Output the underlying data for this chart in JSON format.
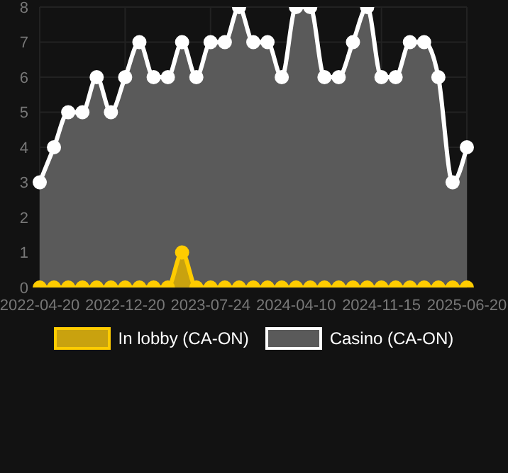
{
  "chart_data": {
    "type": "area",
    "categories": [
      "2022-04-20",
      null,
      null,
      null,
      null,
      null,
      "2022-12-20",
      null,
      null,
      null,
      null,
      null,
      "2023-07-24",
      null,
      null,
      null,
      null,
      null,
      "2024-04-10",
      null,
      null,
      null,
      null,
      null,
      "2024-11-15",
      null,
      null,
      null,
      null,
      null,
      "2025-06-20"
    ],
    "series": [
      {
        "name": "In lobby (CA-ON)",
        "color": "#ffcc00",
        "values": [
          0,
          0,
          0,
          0,
          0,
          0,
          0,
          0,
          0,
          0,
          1,
          0,
          0,
          0,
          0,
          0,
          0,
          0,
          0,
          0,
          0,
          0,
          0,
          0,
          0,
          0,
          0,
          0,
          0,
          0,
          0
        ]
      },
      {
        "name": "Casino (CA-ON)",
        "color": "#ffffff",
        "values": [
          3,
          4,
          5,
          5,
          6,
          5,
          6,
          7,
          6,
          6,
          7,
          6,
          7,
          7,
          8,
          7,
          7,
          6,
          8,
          8,
          6,
          6,
          7,
          8,
          6,
          6,
          7,
          7,
          6,
          3,
          4
        ]
      }
    ],
    "ylim": [
      0,
      8
    ],
    "yticks": [
      0,
      1,
      2,
      3,
      4,
      5,
      6,
      7,
      8
    ],
    "grid": true,
    "legend": "bottom",
    "marker": "circle"
  }
}
